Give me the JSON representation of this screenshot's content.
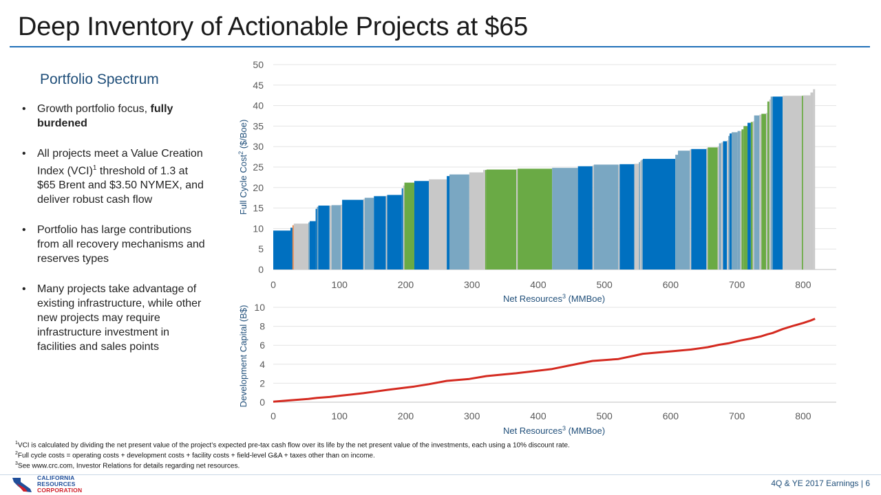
{
  "title": "Deep Inventory of Actionable Projects at $65",
  "panel_heading": "Portfolio Spectrum",
  "bullets": [
    {
      "text": "Growth portfolio focus, ",
      "bold": "fully burdened"
    },
    {
      "text": "All projects meet a Value Creation Index (VCI)",
      "sup": "1",
      "rest": " threshold of 1.3 at $65 Brent and $3.50 NYMEX, and deliver robust cash flow"
    },
    {
      "text": "Portfolio has large contributions from all recovery mechanisms and reserves types"
    },
    {
      "text": "Many projects take advantage of existing infrastructure, while other new projects may require infrastructure investment in facilities and sales points"
    }
  ],
  "footnotes": [
    {
      "sup": "1",
      "text": "VCI is calculated by dividing the net present value of the project’s expected pre-tax cash flow over its life by the net present value of the investments, each using a 10% discount rate."
    },
    {
      "sup": "2",
      "text": "Full cycle costs = operating costs + development costs + facility costs + field-level G&A + taxes other than on income."
    },
    {
      "sup": "3",
      "text": "See www.crc.com, Investor Relations for details regarding net resources."
    }
  ],
  "footer": "4Q & YE 2017 Earnings | 6",
  "logo": {
    "line1": "CALIFORNIA",
    "line2": "RESOURCES",
    "line3": "CORPORATION"
  },
  "colors": {
    "title_rule": "#1f6fb8",
    "blue": "#0070c0",
    "steel": "#7aa7c2",
    "gray": "#c8c8c8",
    "green": "#6aaa45",
    "orange": "#e8864a",
    "red": "#d42a20",
    "logo_blue": "#1f4e9a",
    "logo_red": "#d0202b"
  },
  "chart_data": [
    {
      "type": "bar",
      "subtype": "cost-curve (variable-width bars)",
      "ylabel": "Full Cycle Cost",
      "ylabel_sup": "2",
      "ylabel_unit": " ($/Boe)",
      "xlabel": "Net Resources",
      "xlabel_sup": "3",
      "xlabel_unit": " (MMBoe)",
      "xlim": [
        0,
        850
      ],
      "ylim": [
        0,
        50
      ],
      "xticks": [
        0,
        100,
        200,
        300,
        400,
        500,
        600,
        700,
        800
      ],
      "yticks": [
        0,
        5,
        10,
        15,
        20,
        25,
        30,
        35,
        40,
        45,
        50
      ],
      "grid": true,
      "bars": [
        {
          "x0": 0,
          "x1": 26,
          "y": 9.5,
          "c": "blue"
        },
        {
          "x0": 26,
          "x1": 29,
          "y": 10.2,
          "c": "blue"
        },
        {
          "x0": 29,
          "x1": 31,
          "y": 10.8,
          "c": "orange"
        },
        {
          "x0": 31,
          "x1": 53,
          "y": 11.2,
          "c": "gray"
        },
        {
          "x0": 53,
          "x1": 55,
          "y": 11.5,
          "c": "steel"
        },
        {
          "x0": 55,
          "x1": 64,
          "y": 11.8,
          "c": "blue"
        },
        {
          "x0": 64,
          "x1": 66,
          "y": 14.8,
          "c": "blue"
        },
        {
          "x0": 66,
          "x1": 68,
          "y": 15.3,
          "c": "steel"
        },
        {
          "x0": 68,
          "x1": 85,
          "y": 15.6,
          "c": "blue"
        },
        {
          "x0": 85,
          "x1": 88,
          "y": 15.6,
          "c": "gray"
        },
        {
          "x0": 88,
          "x1": 102,
          "y": 15.7,
          "c": "steel"
        },
        {
          "x0": 102,
          "x1": 104,
          "y": 15.8,
          "c": "gray"
        },
        {
          "x0": 104,
          "x1": 136,
          "y": 17.0,
          "c": "blue"
        },
        {
          "x0": 136,
          "x1": 138,
          "y": 17.2,
          "c": "gray"
        },
        {
          "x0": 138,
          "x1": 152,
          "y": 17.5,
          "c": "steel"
        },
        {
          "x0": 152,
          "x1": 170,
          "y": 17.9,
          "c": "blue"
        },
        {
          "x0": 170,
          "x1": 172,
          "y": 18.0,
          "c": "gray"
        },
        {
          "x0": 172,
          "x1": 194,
          "y": 18.2,
          "c": "blue"
        },
        {
          "x0": 194,
          "x1": 196,
          "y": 19.8,
          "c": "blue"
        },
        {
          "x0": 196,
          "x1": 198,
          "y": 20.5,
          "c": "gray"
        },
        {
          "x0": 198,
          "x1": 213,
          "y": 21.2,
          "c": "green"
        },
        {
          "x0": 213,
          "x1": 235,
          "y": 21.6,
          "c": "blue"
        },
        {
          "x0": 235,
          "x1": 262,
          "y": 22.0,
          "c": "gray"
        },
        {
          "x0": 262,
          "x1": 266,
          "y": 22.8,
          "c": "blue"
        },
        {
          "x0": 266,
          "x1": 296,
          "y": 23.2,
          "c": "steel"
        },
        {
          "x0": 296,
          "x1": 317,
          "y": 23.7,
          "c": "gray"
        },
        {
          "x0": 317,
          "x1": 320,
          "y": 24.3,
          "c": "gray"
        },
        {
          "x0": 320,
          "x1": 322,
          "y": 24.3,
          "c": "green"
        },
        {
          "x0": 322,
          "x1": 367,
          "y": 24.4,
          "c": "green"
        },
        {
          "x0": 367,
          "x1": 369,
          "y": 24.5,
          "c": "gray"
        },
        {
          "x0": 369,
          "x1": 421,
          "y": 24.6,
          "c": "green"
        },
        {
          "x0": 421,
          "x1": 460,
          "y": 24.8,
          "c": "steel"
        },
        {
          "x0": 460,
          "x1": 482,
          "y": 25.2,
          "c": "blue"
        },
        {
          "x0": 482,
          "x1": 484,
          "y": 25.4,
          "c": "gray"
        },
        {
          "x0": 484,
          "x1": 521,
          "y": 25.6,
          "c": "steel"
        },
        {
          "x0": 521,
          "x1": 523,
          "y": 25.6,
          "c": "gray"
        },
        {
          "x0": 523,
          "x1": 545,
          "y": 25.7,
          "c": "blue"
        },
        {
          "x0": 545,
          "x1": 552,
          "y": 25.8,
          "c": "gray"
        },
        {
          "x0": 552,
          "x1": 554,
          "y": 26.2,
          "c": "steel"
        },
        {
          "x0": 554,
          "x1": 556,
          "y": 26.6,
          "c": "gray"
        },
        {
          "x0": 556,
          "x1": 558,
          "y": 26.8,
          "c": "steel"
        },
        {
          "x0": 558,
          "x1": 607,
          "y": 27.0,
          "c": "blue"
        },
        {
          "x0": 607,
          "x1": 611,
          "y": 28.0,
          "c": "steel"
        },
        {
          "x0": 611,
          "x1": 629,
          "y": 29.0,
          "c": "steel"
        },
        {
          "x0": 629,
          "x1": 631,
          "y": 29.3,
          "c": "gray"
        },
        {
          "x0": 631,
          "x1": 654,
          "y": 29.4,
          "c": "blue"
        },
        {
          "x0": 654,
          "x1": 656,
          "y": 29.6,
          "c": "gray"
        },
        {
          "x0": 656,
          "x1": 671,
          "y": 29.8,
          "c": "green"
        },
        {
          "x0": 671,
          "x1": 673,
          "y": 30.0,
          "c": "gray"
        },
        {
          "x0": 673,
          "x1": 676,
          "y": 30.8,
          "c": "steel"
        },
        {
          "x0": 676,
          "x1": 679,
          "y": 31.0,
          "c": "gray"
        },
        {
          "x0": 679,
          "x1": 685,
          "y": 31.3,
          "c": "blue"
        },
        {
          "x0": 685,
          "x1": 687,
          "y": 31.5,
          "c": "gray"
        },
        {
          "x0": 687,
          "x1": 689,
          "y": 32.6,
          "c": "steel"
        },
        {
          "x0": 689,
          "x1": 692,
          "y": 33.2,
          "c": "blue"
        },
        {
          "x0": 692,
          "x1": 701,
          "y": 33.5,
          "c": "steel"
        },
        {
          "x0": 701,
          "x1": 705,
          "y": 33.8,
          "c": "steel"
        },
        {
          "x0": 705,
          "x1": 707,
          "y": 33.8,
          "c": "gray"
        },
        {
          "x0": 707,
          "x1": 710,
          "y": 34.2,
          "c": "green"
        },
        {
          "x0": 710,
          "x1": 716,
          "y": 35.0,
          "c": "green"
        },
        {
          "x0": 716,
          "x1": 721,
          "y": 35.8,
          "c": "blue"
        },
        {
          "x0": 721,
          "x1": 724,
          "y": 36.0,
          "c": "green"
        },
        {
          "x0": 724,
          "x1": 726,
          "y": 36.2,
          "c": "gray"
        },
        {
          "x0": 726,
          "x1": 734,
          "y": 37.6,
          "c": "steel"
        },
        {
          "x0": 734,
          "x1": 737,
          "y": 37.8,
          "c": "gray"
        },
        {
          "x0": 737,
          "x1": 744,
          "y": 38.0,
          "c": "green"
        },
        {
          "x0": 744,
          "x1": 746,
          "y": 38.2,
          "c": "gray"
        },
        {
          "x0": 746,
          "x1": 749,
          "y": 41.0,
          "c": "green"
        },
        {
          "x0": 749,
          "x1": 751,
          "y": 41.5,
          "c": "gray"
        },
        {
          "x0": 751,
          "x1": 754,
          "y": 42.2,
          "c": "steel"
        },
        {
          "x0": 754,
          "x1": 769,
          "y": 42.2,
          "c": "blue"
        },
        {
          "x0": 769,
          "x1": 798,
          "y": 42.4,
          "c": "gray"
        },
        {
          "x0": 798,
          "x1": 800,
          "y": 42.4,
          "c": "green"
        },
        {
          "x0": 800,
          "x1": 811,
          "y": 42.5,
          "c": "gray"
        },
        {
          "x0": 811,
          "x1": 815,
          "y": 43.2,
          "c": "gray"
        },
        {
          "x0": 815,
          "x1": 818,
          "y": 44.0,
          "c": "gray"
        }
      ]
    },
    {
      "type": "line",
      "ylabel": "Development Capital (B$)",
      "xlabel": "Net Resources",
      "xlabel_sup": "3",
      "xlabel_unit": " (MMBoe)",
      "xlim": [
        0,
        850
      ],
      "ylim": [
        0,
        10
      ],
      "xticks": [
        0,
        100,
        200,
        300,
        400,
        500,
        600,
        700,
        800
      ],
      "yticks": [
        0,
        2,
        4,
        6,
        8,
        10
      ],
      "grid": true,
      "series": [
        {
          "color": "red",
          "x": [
            0,
            26,
            53,
            66,
            85,
            104,
            136,
            152,
            172,
            196,
            213,
            235,
            262,
            296,
            322,
            367,
            421,
            460,
            482,
            521,
            545,
            558,
            607,
            631,
            656,
            673,
            687,
            705,
            721,
            737,
            746,
            754,
            769,
            785,
            800,
            811,
            818
          ],
          "y": [
            0.05,
            0.2,
            0.35,
            0.45,
            0.55,
            0.7,
            0.95,
            1.1,
            1.3,
            1.5,
            1.65,
            1.9,
            2.25,
            2.45,
            2.75,
            3.05,
            3.5,
            4.05,
            4.35,
            4.55,
            4.9,
            5.1,
            5.4,
            5.55,
            5.8,
            6.05,
            6.2,
            6.5,
            6.7,
            6.95,
            7.15,
            7.3,
            7.7,
            8.05,
            8.35,
            8.6,
            8.8
          ]
        }
      ]
    }
  ]
}
